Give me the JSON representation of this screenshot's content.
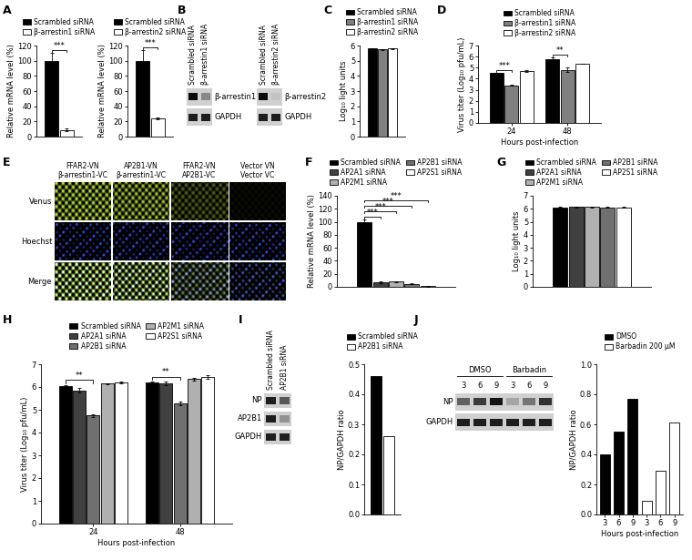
{
  "chart_data": [
    {
      "panel": "A",
      "type": "bar",
      "categories": [
        null
      ],
      "tick_labels": "y",
      "series": [
        {
          "name": "Scrambled siRNA",
          "color": "#000000",
          "values": [
            100
          ],
          "errors": [
            10
          ]
        },
        {
          "name": "β-arrestin1 siRNA",
          "color": "#ffffff",
          "values": [
            9
          ],
          "errors": [
            2
          ]
        }
      ],
      "ylabel": "Relative mRNA level (%)",
      "ylim": [
        0,
        120
      ],
      "yticks": [
        0,
        20,
        40,
        60,
        80,
        100,
        120
      ],
      "legend": "above",
      "annotations": [
        {
          "text": "***",
          "category": 0,
          "from": 0,
          "to": 1
        }
      ]
    },
    {
      "type": "bar",
      "categories": [
        null
      ],
      "tick_labels": "y",
      "series": [
        {
          "name": "Scrambled siRNA",
          "color": "#000000",
          "values": [
            100
          ],
          "errors": [
            14
          ]
        },
        {
          "name": "β-arrestin2 siRNA",
          "color": "#ffffff",
          "values": [
            24
          ],
          "errors": [
            1.5
          ]
        }
      ],
      "ylabel": "Relative mRNA level (%)",
      "ylim": [
        0,
        120
      ],
      "yticks": [
        0,
        20,
        40,
        60,
        80,
        100,
        120
      ],
      "legend": "above",
      "annotations": [
        {
          "text": "***",
          "category": 0,
          "from": 0,
          "to": 1
        }
      ]
    },
    {
      "panel": "C",
      "type": "bar",
      "categories": [
        null
      ],
      "tick_labels": "y",
      "series": [
        {
          "name": "Scrambled siRNA",
          "color": "#000000",
          "values": [
            5.8
          ],
          "errors": [
            0.03
          ]
        },
        {
          "name": "β-arrestin1 siRNA",
          "color": "#808080",
          "values": [
            5.75
          ],
          "errors": [
            0.03
          ]
        },
        {
          "name": "β-arrestin2 siRNA",
          "color": "#ffffff",
          "values": [
            5.8
          ],
          "errors": [
            0.02
          ]
        }
      ],
      "ylabel": "Log₁₀ light units",
      "ylim": [
        0,
        6
      ],
      "yticks": [
        0,
        1,
        2,
        3,
        4,
        5,
        6
      ],
      "legend": "above"
    },
    {
      "panel": "D",
      "type": "bar",
      "categories": [
        "24",
        "48"
      ],
      "xlabel": "Hours post-infection",
      "series": [
        {
          "name": "Scrambled siRNA",
          "color": "#000000",
          "values": [
            4.5,
            5.8
          ],
          "errors": [
            0.05,
            0.15
          ]
        },
        {
          "name": "β-arrestin1 siRNA",
          "color": "#808080",
          "values": [
            3.4,
            4.8
          ],
          "errors": [
            0.05,
            0.2
          ]
        },
        {
          "name": "β-arrestin2 siRNA",
          "color": "#ffffff",
          "values": [
            4.7,
            5.35
          ],
          "errors": [
            0.1,
            0.03
          ]
        }
      ],
      "ylabel": "Virus titer (Log₁₀ pfu/mL)",
      "ylim": [
        0,
        7
      ],
      "yticks": [
        0,
        1,
        2,
        3,
        4,
        5,
        6,
        7
      ],
      "legend": "above",
      "annotations": [
        {
          "text": "***",
          "category": 0,
          "from": 0,
          "to": 1
        },
        {
          "text": "**",
          "category": 1,
          "from": 0,
          "to": 1
        }
      ]
    },
    {
      "panel": "F",
      "type": "bar",
      "categories": [
        null
      ],
      "tick_labels": "y",
      "series": [
        {
          "name": "Scrambled siRNA",
          "color": "#000000",
          "values": [
            100
          ],
          "errors": [
            3
          ]
        },
        {
          "name": "AP2A1 siRNA",
          "color": "#404040",
          "values": [
            7
          ],
          "errors": [
            1
          ]
        },
        {
          "name": "AP2M1 siRNA",
          "color": "#b0b0b0",
          "values": [
            8
          ],
          "errors": [
            0.5
          ]
        },
        {
          "name": "AP2B1 siRNA",
          "color": "#707070",
          "values": [
            4.5
          ],
          "errors": [
            0.5
          ]
        },
        {
          "name": "AP2S1 siRNA",
          "color": "#ffffff",
          "values": [
            0.8
          ],
          "errors": [
            0.2
          ]
        }
      ],
      "ylabel": "Relative mRNA level (%)",
      "ylim": [
        0,
        140
      ],
      "yticks": [
        0,
        20,
        40,
        60,
        80,
        100,
        120,
        140
      ],
      "legend": "above",
      "annotations": [
        {
          "text": "***",
          "category": 0,
          "from": 0,
          "to": 1
        },
        {
          "text": "***",
          "category": 0,
          "from": 0,
          "to": 2
        },
        {
          "text": "***",
          "category": 0,
          "from": 0,
          "to": 3
        },
        {
          "text": "***",
          "category": 0,
          "from": 0,
          "to": 4
        }
      ]
    },
    {
      "panel": "G",
      "type": "bar",
      "categories": [
        null
      ],
      "tick_labels": "y",
      "series": [
        {
          "name": "Scrambled siRNA",
          "color": "#000000",
          "values": [
            6.1
          ],
          "errors": [
            0.03
          ]
        },
        {
          "name": "AP2A1 siRNA",
          "color": "#404040",
          "values": [
            6.15
          ],
          "errors": [
            0.03
          ]
        },
        {
          "name": "AP2M1 siRNA",
          "color": "#b0b0b0",
          "values": [
            6.15
          ],
          "errors": [
            0.03
          ]
        },
        {
          "name": "AP2B1 siRNA",
          "color": "#707070",
          "values": [
            6.1
          ],
          "errors": [
            0.03
          ]
        },
        {
          "name": "AP2S1 siRNA",
          "color": "#ffffff",
          "values": [
            6.1
          ],
          "errors": [
            0.03
          ]
        }
      ],
      "ylabel": "Log₁₀ light units",
      "ylim": [
        0,
        7
      ],
      "yticks": [
        0,
        1,
        2,
        3,
        4,
        5,
        6,
        7
      ],
      "legend": "above"
    },
    {
      "panel": "H",
      "type": "bar",
      "categories": [
        "24",
        "48"
      ],
      "xlabel": "Hours post-infection",
      "series": [
        {
          "name": "Scrambled siRNA",
          "color": "#000000",
          "values": [
            6.05,
            6.2
          ],
          "errors": [
            0.05,
            0.05
          ]
        },
        {
          "name": "AP2A1 siRNA",
          "color": "#404040",
          "values": [
            5.85,
            6.15
          ],
          "errors": [
            0.1,
            0.08
          ]
        },
        {
          "name": "AP2B1 siRNA",
          "color": "#707070",
          "values": [
            4.75,
            5.3
          ],
          "errors": [
            0.05,
            0.08
          ]
        },
        {
          "name": "AP2M1 siRNA",
          "color": "#b0b0b0",
          "values": [
            6.15,
            6.35
          ],
          "errors": [
            0.03,
            0.05
          ]
        },
        {
          "name": "AP2S1 siRNA",
          "color": "#ffffff",
          "values": [
            6.2,
            6.45
          ],
          "errors": [
            0.03,
            0.08
          ]
        }
      ],
      "ylabel": "Virus titer (Log₁₀ pfu/mL)",
      "ylim": [
        0,
        7
      ],
      "yticks": [
        0,
        1,
        2,
        3,
        4,
        5,
        6,
        7
      ],
      "legend": "above",
      "annotations": [
        {
          "text": "**",
          "category": 0,
          "from": 0,
          "to": 2
        },
        {
          "text": "**",
          "category": 1,
          "from": 0,
          "to": 2
        }
      ]
    },
    {
      "type": "bar",
      "categories": [
        null
      ],
      "tick_labels": "y",
      "series": [
        {
          "name": "Scrambled siRNA",
          "color": "#000000",
          "values": [
            0.46
          ]
        },
        {
          "name": "AP2B1 siRNA",
          "color": "#ffffff",
          "values": [
            0.26
          ]
        }
      ],
      "ylabel": "NP/GAPDH ratio",
      "ylim": [
        0,
        0.5
      ],
      "yticks": [
        {
          "value": 0,
          "label": "0.0"
        },
        0.1,
        0.2,
        0.3,
        0.4,
        0.5
      ],
      "legend": "above"
    },
    {
      "type": "bar",
      "categories": [
        "3",
        "6",
        "9",
        "3",
        "6",
        "9"
      ],
      "xlabel": "Hours post-infection",
      "series": [
        {
          "name": "DMSO",
          "color": "#000000",
          "values": [
            0.4,
            0.55,
            0.77,
            null,
            null,
            null
          ]
        },
        {
          "name": "Barbadin 200 μM",
          "color": "#ffffff",
          "values": [
            null,
            null,
            null,
            0.09,
            0.29,
            0.61
          ]
        }
      ],
      "ylabel": "NP/GAPDH ratio",
      "ylim": [
        0,
        1
      ],
      "yticks": [
        {
          "value": 0,
          "label": "0.0"
        },
        0.2,
        0.4,
        0.6,
        0.8,
        {
          "value": 1,
          "label": "1.0"
        }
      ],
      "legend": "above"
    }
  ],
  "blots": [
    {
      "panel": "B",
      "lanes": [
        "Scrambled siRNA",
        "β-arrestin1 siRNA"
      ],
      "rows": [
        {
          "name": "β-arrestin1",
          "bands": [
            1.0,
            0.35
          ]
        },
        {
          "name": "GAPDH",
          "bands": [
            0.9,
            0.9
          ]
        }
      ]
    },
    {
      "lanes": [
        "Scrambled siRNA",
        "β-arrestin2 siRNA"
      ],
      "rows": [
        {
          "name": "β-arrestin2",
          "bands": [
            1.0,
            0.05
          ]
        },
        {
          "name": "GAPDH",
          "bands": [
            0.9,
            0.9
          ]
        }
      ]
    },
    {
      "panel": "I",
      "lanes": [
        "Scrambled siRNA",
        "AP2B1 siRNA"
      ],
      "rows": [
        {
          "name": "NP",
          "bands": [
            0.9,
            0.6
          ]
        },
        {
          "name": "AP2B1",
          "bands": [
            0.9,
            0.3
          ]
        },
        {
          "name": "GAPDH",
          "bands": [
            0.9,
            0.9
          ]
        }
      ]
    },
    {
      "panel": "J",
      "groups": [
        {
          "name": "DMSO",
          "size": 3
        },
        {
          "name": "Barbadin",
          "size": 3
        }
      ],
      "lanes": [
        "3",
        "6",
        "9",
        "3",
        "6",
        "9"
      ],
      "rows": [
        {
          "name": "NP",
          "bands": [
            0.55,
            0.75,
            0.95,
            0.2,
            0.45,
            0.8
          ]
        },
        {
          "name": "GAPDH",
          "bands": [
            0.9,
            0.9,
            0.9,
            0.9,
            0.9,
            0.9
          ]
        }
      ]
    }
  ],
  "microscopy": {
    "panel": "E",
    "columns": [
      "FFAR2-VN\nβ-arrestin1-VC",
      "AP2B1-VN\nβ-arrestin1-VC",
      "FFAR2-VN\nAP2B1-VC",
      "Vector VN\nVector VC"
    ],
    "rows": [
      "Venus",
      "Hoechst",
      "Merge"
    ],
    "signal": [
      1.0,
      0.9,
      0.45,
      0.08
    ]
  }
}
